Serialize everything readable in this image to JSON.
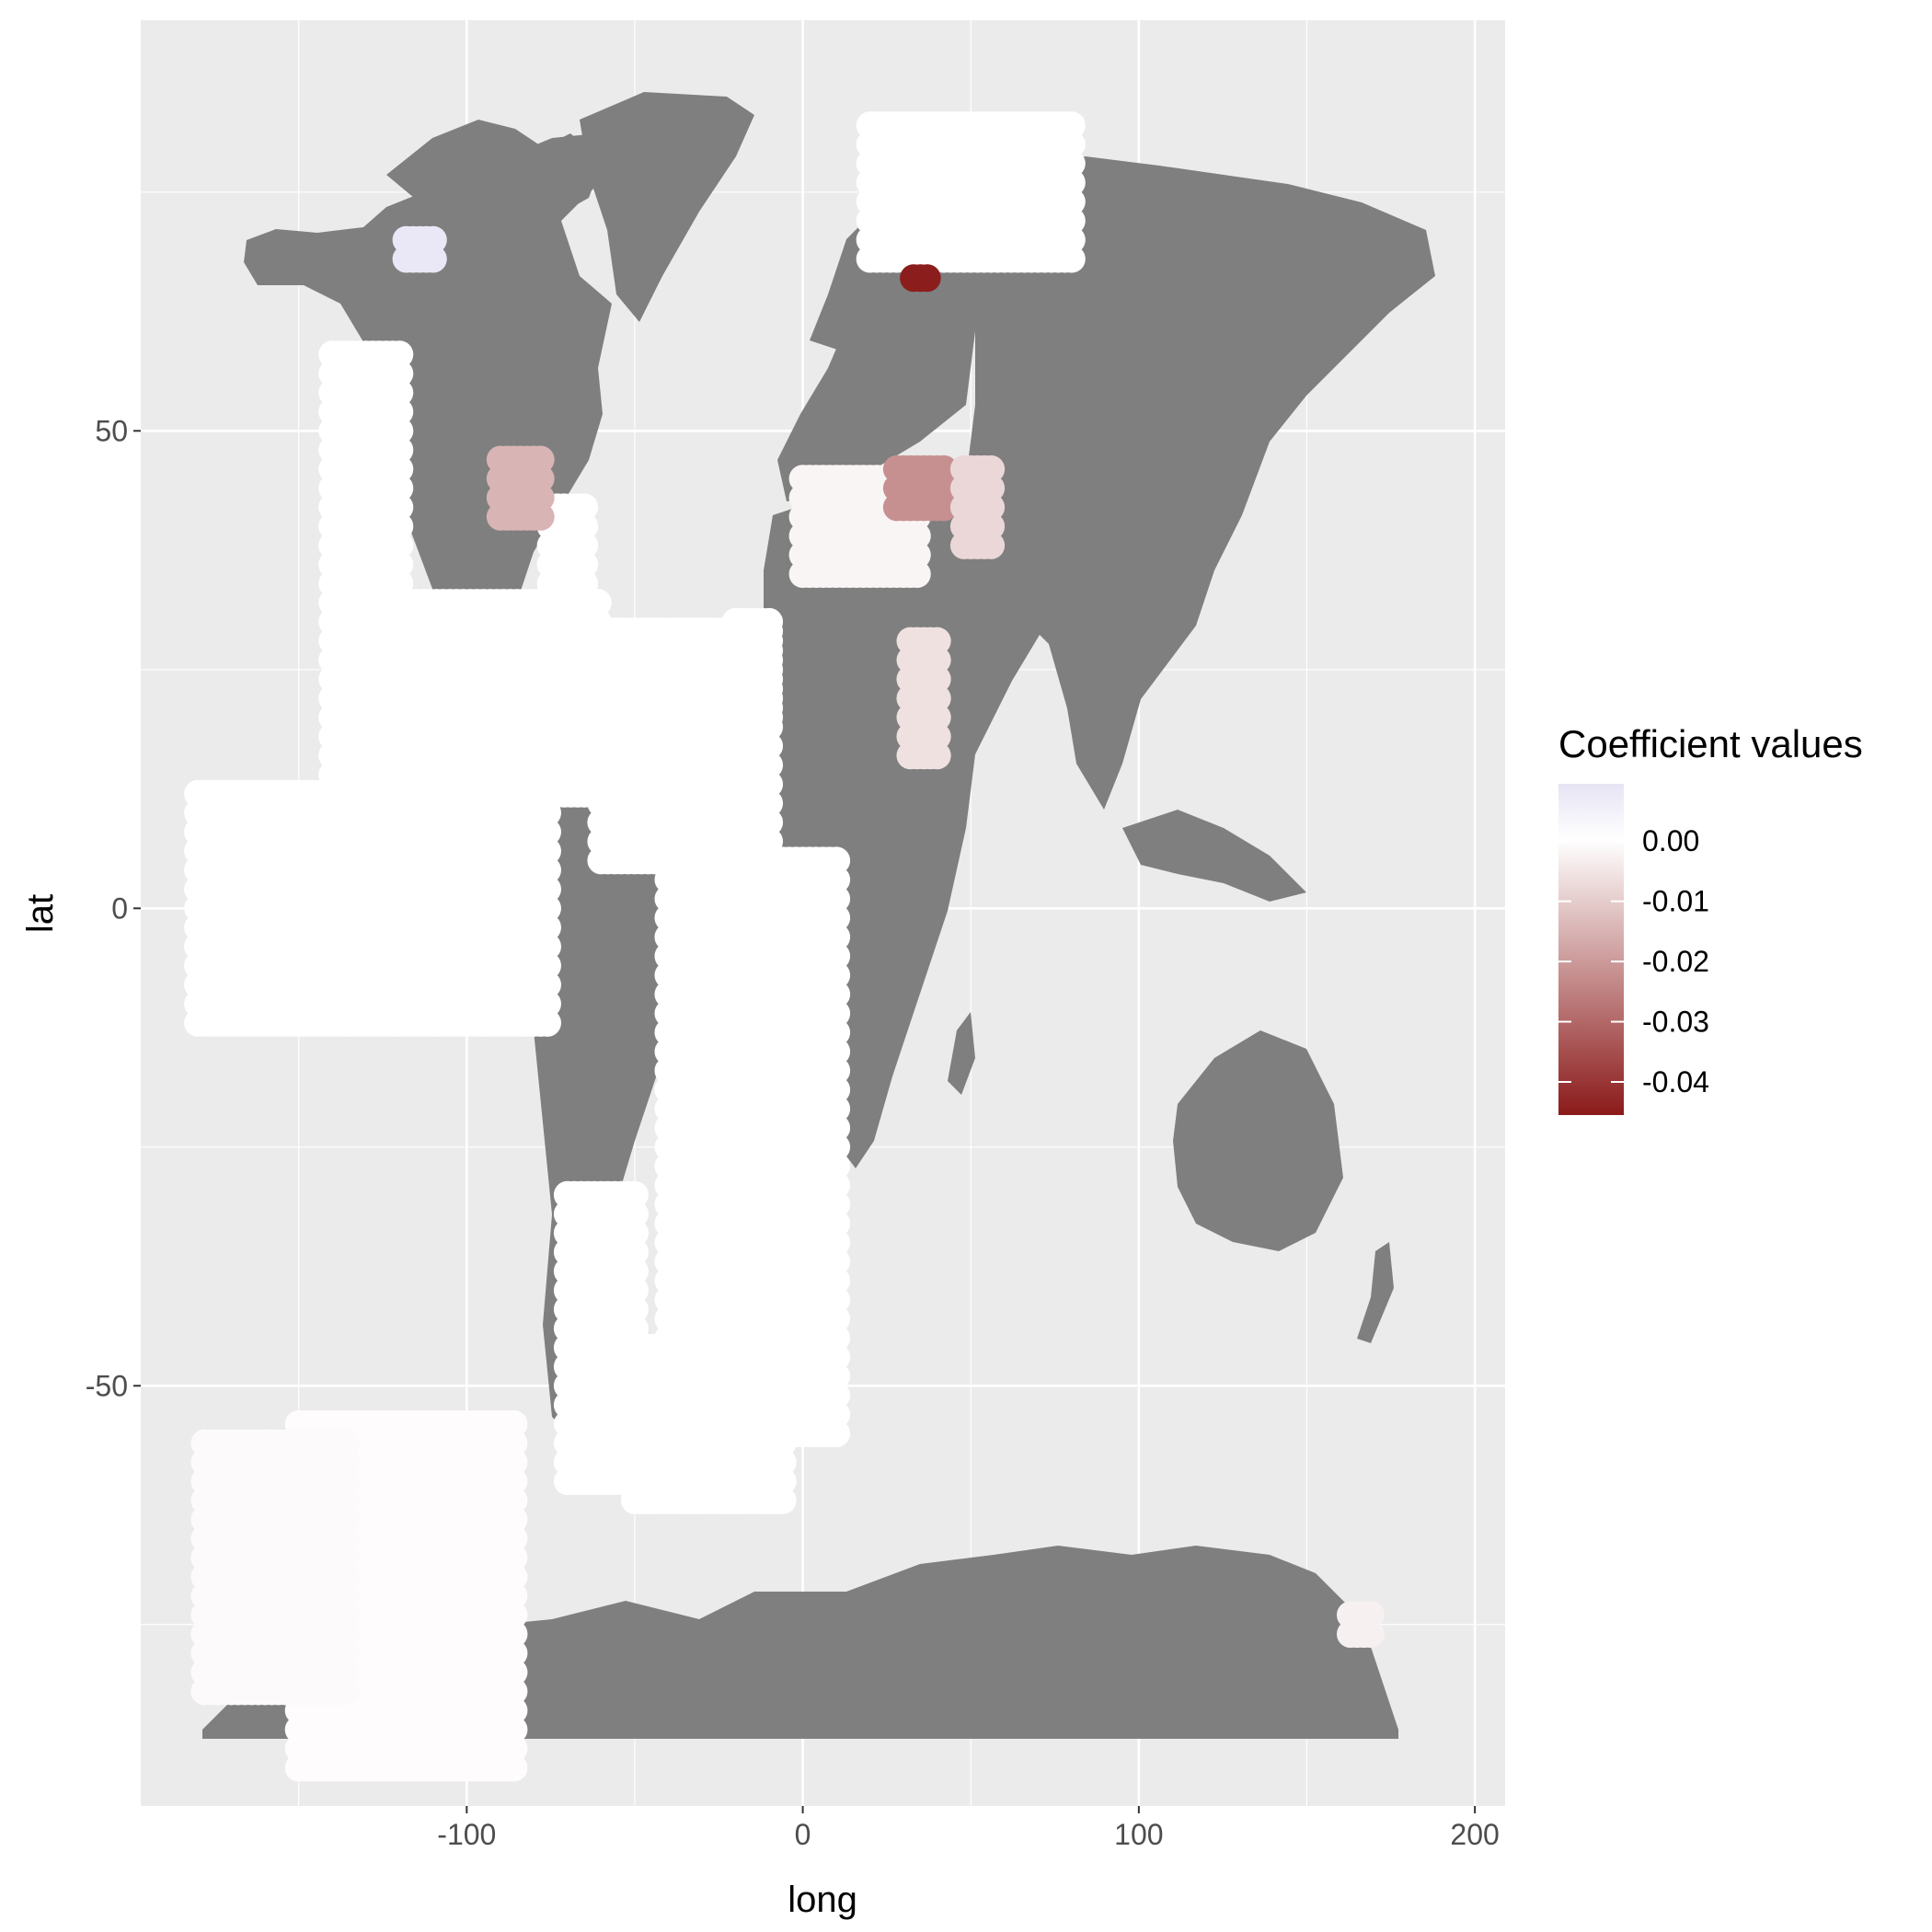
{
  "chart_data": {
    "type": "scatter",
    "xlabel": "long",
    "ylabel": "lat",
    "xlim": [
      -197,
      209
    ],
    "ylim": [
      -94,
      93
    ],
    "x_ticks": [
      -100,
      0,
      100,
      200
    ],
    "y_ticks": [
      -50,
      0,
      50
    ],
    "x_tick_labels": [
      "-100",
      "0",
      "100",
      "200"
    ],
    "y_tick_labels": [
      "-50",
      "0",
      "50"
    ],
    "x_minor": [
      -150,
      -50,
      50,
      150
    ],
    "y_minor": [
      -75,
      -25,
      25,
      75
    ],
    "grid": true,
    "panel_color": "#ebebeb",
    "land_color": "#7f7f7f",
    "legend": {
      "title": "Coefficient values",
      "position": "right",
      "labels": [
        "0.00",
        "-0.01",
        "-0.02",
        "-0.03",
        "-0.04"
      ],
      "values": [
        0.0,
        -0.01,
        -0.02,
        -0.03,
        -0.04
      ],
      "range": [
        -0.0455,
        0.0095
      ],
      "colors": [
        "#8b1a1a",
        "#ffffff",
        "#e6e4f4"
      ]
    },
    "clusters": [
      {
        "lon": [
          -150,
          -85
        ],
        "lat": [
          -90,
          -53
        ],
        "value": -0.0005
      },
      {
        "lon": [
          -180,
          -75
        ],
        "lat": [
          -12,
          12
        ],
        "value": 0.0
      },
      {
        "lon": [
          -140,
          -120
        ],
        "lat": [
          10,
          58
        ],
        "value": 0.0
      },
      {
        "lon": [
          -115,
          -60
        ],
        "lat": [
          12,
          33
        ],
        "value": 0.0
      },
      {
        "lon": [
          -60,
          -10
        ],
        "lat": [
          5,
          30
        ],
        "value": 0.0
      },
      {
        "lon": [
          -75,
          -65
        ],
        "lat": [
          30,
          43
        ],
        "value": 0.0
      },
      {
        "lon": [
          -40,
          10
        ],
        "lat": [
          -55,
          5
        ],
        "value": 0.0
      },
      {
        "lon": [
          -70,
          -50
        ],
        "lat": [
          -60,
          -30
        ],
        "value": 0.0
      },
      {
        "lon": [
          -50,
          -5
        ],
        "lat": [
          -62,
          -45
        ],
        "value": 0.0
      },
      {
        "lon": [
          20,
          80
        ],
        "lat": [
          68,
          83
        ],
        "value": 0.0
      },
      {
        "lon": [
          0,
          35
        ],
        "lat": [
          35,
          45
        ],
        "value": -0.002
      },
      {
        "lon": [
          -20,
          -10
        ],
        "lat": [
          20,
          30
        ],
        "value": 0.0
      },
      {
        "lon": [
          -118,
          -110
        ],
        "lat": [
          68,
          71
        ],
        "value": 0.008
      },
      {
        "lon": [
          -90,
          -78
        ],
        "lat": [
          41,
          48
        ],
        "value": -0.015
      },
      {
        "lon": [
          28,
          42
        ],
        "lat": [
          42,
          46
        ],
        "value": -0.022
      },
      {
        "lon": [
          48,
          56
        ],
        "lat": [
          38,
          46
        ],
        "value": -0.008
      },
      {
        "lon": [
          32,
          40
        ],
        "lat": [
          16,
          28
        ],
        "value": -0.006
      },
      {
        "lon": [
          33,
          38
        ],
        "lat": [
          66,
          67
        ],
        "value": -0.045
      },
      {
        "lon": [
          -178,
          -135
        ],
        "lat": [
          -82,
          -55
        ],
        "value": -0.001
      },
      {
        "lon": [
          163,
          170
        ],
        "lat": [
          -76,
          -73
        ],
        "value": -0.003
      }
    ]
  }
}
